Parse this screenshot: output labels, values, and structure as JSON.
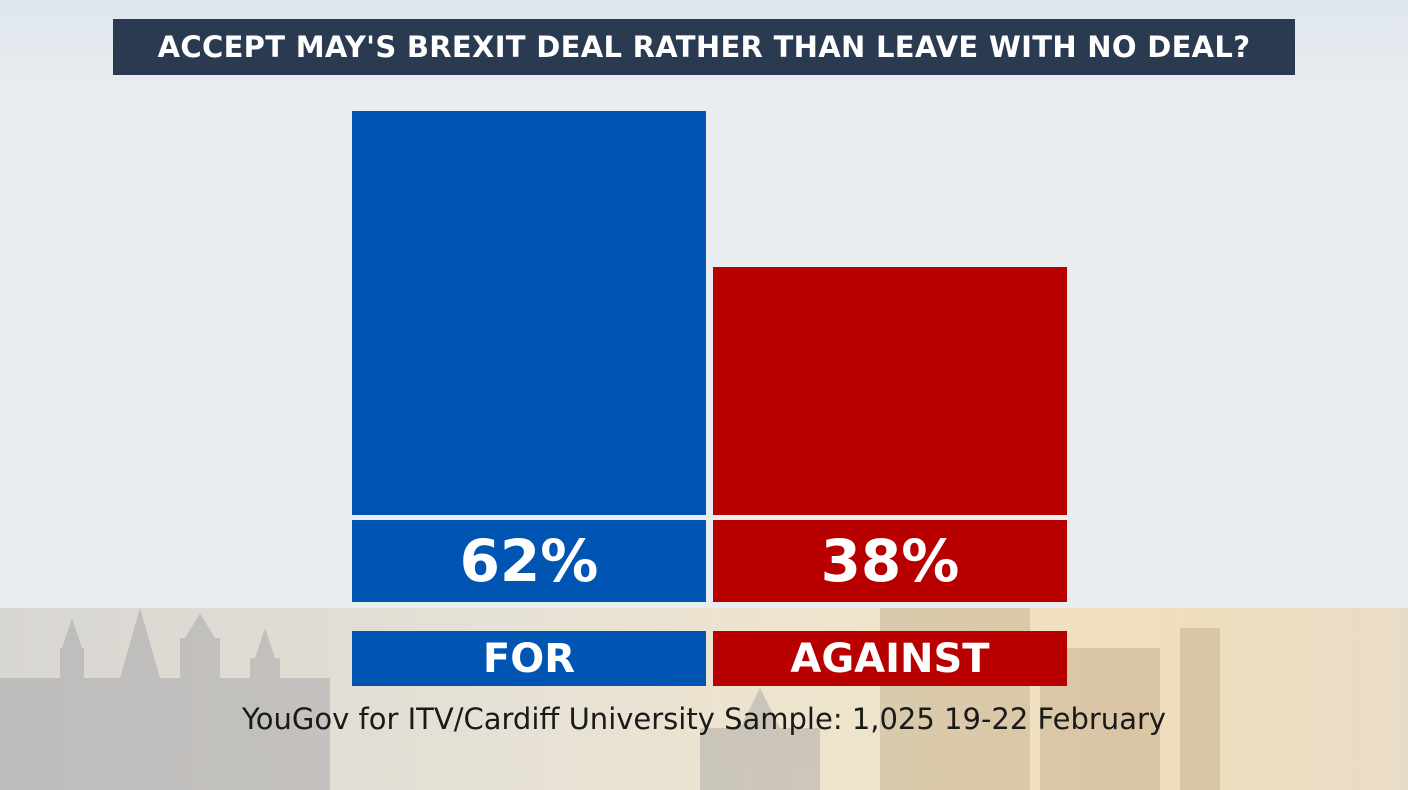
{
  "chart_data": {
    "type": "bar",
    "title": "ACCEPT MAY'S BREXIT DEAL RATHER THAN LEAVE WITH NO DEAL?",
    "categories": [
      "FOR",
      "AGAINST"
    ],
    "values": [
      62,
      38
    ],
    "value_labels": [
      "62%",
      "38%"
    ],
    "colors": [
      "#0055b3",
      "#b90000"
    ],
    "ylim": [
      0,
      62
    ],
    "xlabel": "",
    "ylabel": "",
    "grid": false
  },
  "source": "YouGov for ITV/Cardiff University Sample: 1,025 19-22 February"
}
